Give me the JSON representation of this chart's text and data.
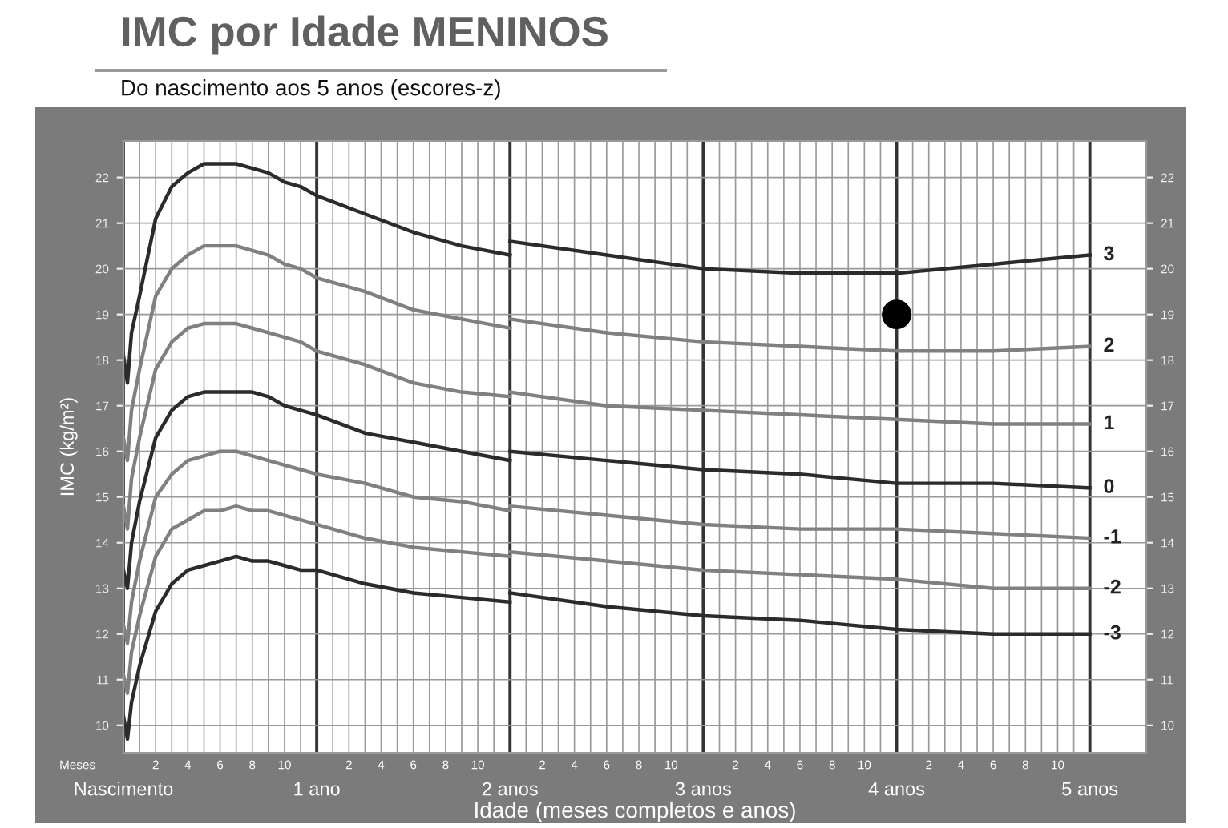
{
  "chart_data": {
    "type": "line",
    "title": "IMC por Idade MENINOS",
    "subtitle": "Do nascimento aos 5 anos (escores-z)",
    "xlabel": "Idade (meses completos e anos)",
    "ylabel": "IMC (kg/m²)",
    "annotations": [
      "Meses",
      "2",
      "4",
      "6",
      "8",
      "10",
      "2",
      "4",
      "6",
      "8",
      "10",
      "2",
      "4",
      "6",
      "8",
      "10",
      "2",
      "4",
      "6",
      "8",
      "10",
      "2",
      "4",
      "6",
      "8",
      "10"
    ],
    "series": [
      {
        "color": "#2b2b2b",
        "x": [
          0,
          0.0208,
          0.0417,
          0.0833,
          0.1667,
          0.25,
          0.3333,
          0.4167,
          0.5,
          0.5833,
          0.6667,
          0.75,
          0.8333,
          0.9167,
          1,
          1.25,
          1.5,
          1.75,
          2
        ],
        "values": [
          18.1,
          17.5,
          18.6,
          19.4,
          21.1,
          21.8,
          22.1,
          22.3,
          22.3,
          22.3,
          22.2,
          22.1,
          21.9,
          21.8,
          21.6,
          21.2,
          20.8,
          20.5,
          20.3
        ]
      },
      {
        "name": "3",
        "color": "#2b2b2b",
        "x": [
          2,
          2.5,
          3,
          3.5,
          4,
          4.5,
          5
        ],
        "values": [
          20.6,
          20.3,
          20.0,
          19.9,
          19.9,
          20.1,
          20.3
        ]
      },
      {
        "color": "#808080",
        "x": [
          0,
          0.0208,
          0.0417,
          0.0833,
          0.1667,
          0.25,
          0.3333,
          0.4167,
          0.5,
          0.5833,
          0.6667,
          0.75,
          0.8333,
          0.9167,
          1,
          1.25,
          1.5,
          1.75,
          2
        ],
        "values": [
          16.3,
          15.8,
          16.9,
          17.8,
          19.4,
          20.0,
          20.3,
          20.5,
          20.5,
          20.5,
          20.4,
          20.3,
          20.1,
          20.0,
          19.8,
          19.5,
          19.1,
          18.9,
          18.7
        ]
      },
      {
        "name": "2",
        "color": "#808080",
        "x": [
          2,
          2.5,
          3,
          3.5,
          4,
          4.5,
          5
        ],
        "values": [
          18.9,
          18.6,
          18.4,
          18.3,
          18.2,
          18.2,
          18.3
        ]
      },
      {
        "color": "#808080",
        "x": [
          0,
          0.0208,
          0.0417,
          0.0833,
          0.1667,
          0.25,
          0.3333,
          0.4167,
          0.5,
          0.5833,
          0.6667,
          0.75,
          0.8333,
          0.9167,
          1,
          1.25,
          1.5,
          1.75,
          2
        ],
        "values": [
          14.8,
          14.3,
          15.4,
          16.3,
          17.8,
          18.4,
          18.7,
          18.8,
          18.8,
          18.8,
          18.7,
          18.6,
          18.5,
          18.4,
          18.2,
          17.9,
          17.5,
          17.3,
          17.2
        ]
      },
      {
        "name": "1",
        "color": "#808080",
        "x": [
          2,
          2.5,
          3,
          3.5,
          4,
          4.5,
          5
        ],
        "values": [
          17.3,
          17.0,
          16.9,
          16.8,
          16.7,
          16.6,
          16.6
        ]
      },
      {
        "color": "#2b2b2b",
        "x": [
          0,
          0.0208,
          0.0417,
          0.0833,
          0.1667,
          0.25,
          0.3333,
          0.4167,
          0.5,
          0.5833,
          0.6667,
          0.75,
          0.8333,
          0.9167,
          1,
          1.25,
          1.5,
          1.75,
          2
        ],
        "values": [
          13.4,
          13.0,
          14.0,
          14.9,
          16.3,
          16.9,
          17.2,
          17.3,
          17.3,
          17.3,
          17.3,
          17.2,
          17.0,
          16.9,
          16.8,
          16.4,
          16.2,
          16.0,
          15.8
        ]
      },
      {
        "name": "0",
        "color": "#2b2b2b",
        "x": [
          2,
          2.5,
          3,
          3.5,
          4,
          4.5,
          5
        ],
        "values": [
          16.0,
          15.8,
          15.6,
          15.5,
          15.3,
          15.3,
          15.2
        ]
      },
      {
        "color": "#808080",
        "x": [
          0,
          0.0208,
          0.0417,
          0.0833,
          0.1667,
          0.25,
          0.3333,
          0.4167,
          0.5,
          0.5833,
          0.6667,
          0.75,
          0.8333,
          0.9167,
          1,
          1.25,
          1.5,
          1.75,
          2
        ],
        "values": [
          12.2,
          11.8,
          12.7,
          13.6,
          15.0,
          15.5,
          15.8,
          15.9,
          16.0,
          16.0,
          15.9,
          15.8,
          15.7,
          15.6,
          15.5,
          15.3,
          15.0,
          14.9,
          14.7
        ]
      },
      {
        "name": "-1",
        "color": "#808080",
        "x": [
          2,
          2.5,
          3,
          3.5,
          4,
          4.5,
          5
        ],
        "values": [
          14.8,
          14.6,
          14.4,
          14.3,
          14.3,
          14.2,
          14.1
        ]
      },
      {
        "color": "#808080",
        "x": [
          0,
          0.0208,
          0.0417,
          0.0833,
          0.1667,
          0.25,
          0.3333,
          0.4167,
          0.5,
          0.5833,
          0.6667,
          0.75,
          0.8333,
          0.9167,
          1,
          1.25,
          1.5,
          1.75,
          2
        ],
        "values": [
          11.1,
          10.7,
          11.6,
          12.4,
          13.7,
          14.3,
          14.5,
          14.7,
          14.7,
          14.8,
          14.7,
          14.7,
          14.6,
          14.5,
          14.4,
          14.1,
          13.9,
          13.8,
          13.7
        ]
      },
      {
        "name": "-2",
        "color": "#808080",
        "x": [
          2,
          2.5,
          3,
          3.5,
          4,
          4.5,
          5
        ],
        "values": [
          13.8,
          13.6,
          13.4,
          13.3,
          13.2,
          13.0,
          13.0
        ]
      },
      {
        "color": "#2b2b2b",
        "x": [
          0,
          0.0208,
          0.0417,
          0.0833,
          0.1667,
          0.25,
          0.3333,
          0.4167,
          0.5,
          0.5833,
          0.6667,
          0.75,
          0.8333,
          0.9167,
          1,
          1.25,
          1.5,
          1.75,
          2
        ],
        "values": [
          10.2,
          9.7,
          10.5,
          11.3,
          12.5,
          13.1,
          13.4,
          13.5,
          13.6,
          13.7,
          13.6,
          13.6,
          13.5,
          13.4,
          13.4,
          13.1,
          12.9,
          12.8,
          12.7
        ]
      },
      {
        "name": "-3",
        "color": "#2b2b2b",
        "x": [
          2,
          2.5,
          3,
          3.5,
          4,
          4.5,
          5
        ],
        "values": [
          12.9,
          12.6,
          12.4,
          12.3,
          12.1,
          12.0,
          12.0
        ]
      },
      {
        "type": "scatter",
        "marker": "circle",
        "x": [
          4
        ],
        "color": "#000000",
        "values": [
          19.0
        ]
      }
    ],
    "xlim": [
      0,
      5.2917
    ],
    "ylim": [
      9.4,
      22.8
    ],
    "xticks": [
      {
        "value": 0,
        "label": "Nascimento"
      },
      {
        "value": 0.0833,
        "label": null
      },
      {
        "value": 0.1667,
        "label": null
      },
      {
        "value": 0.25,
        "label": null
      },
      {
        "value": 0.3333,
        "label": null
      },
      {
        "value": 0.4167,
        "label": null
      },
      {
        "value": 0.5,
        "label": null
      },
      {
        "value": 0.5833,
        "label": null
      },
      {
        "value": 0.6667,
        "label": null
      },
      {
        "value": 0.75,
        "label": null
      },
      {
        "value": 0.8333,
        "label": null
      },
      {
        "value": 0.9167,
        "label": null
      },
      {
        "value": 1,
        "label": "1 ano"
      },
      {
        "value": 1.0833,
        "label": null
      },
      {
        "value": 1.1667,
        "label": null
      },
      {
        "value": 1.25,
        "label": null
      },
      {
        "value": 1.3333,
        "label": null
      },
      {
        "value": 1.4167,
        "label": null
      },
      {
        "value": 1.5,
        "label": null
      },
      {
        "value": 1.5833,
        "label": null
      },
      {
        "value": 1.6667,
        "label": null
      },
      {
        "value": 1.75,
        "label": null
      },
      {
        "value": 1.8333,
        "label": null
      },
      {
        "value": 1.9167,
        "label": null
      },
      {
        "value": 2,
        "label": "2 anos"
      },
      {
        "value": 2.0833,
        "label": null
      },
      {
        "value": 2.1667,
        "label": null
      },
      {
        "value": 2.25,
        "label": null
      },
      {
        "value": 2.3333,
        "label": null
      },
      {
        "value": 2.4167,
        "label": null
      },
      {
        "value": 2.5,
        "label": null
      },
      {
        "value": 2.5833,
        "label": null
      },
      {
        "value": 2.6667,
        "label": null
      },
      {
        "value": 2.75,
        "label": null
      },
      {
        "value": 2.8333,
        "label": null
      },
      {
        "value": 2.9167,
        "label": null
      },
      {
        "value": 3,
        "label": "3 anos"
      },
      {
        "value": 3.0833,
        "label": null
      },
      {
        "value": 3.1667,
        "label": null
      },
      {
        "value": 3.25,
        "label": null
      },
      {
        "value": 3.3333,
        "label": null
      },
      {
        "value": 3.4167,
        "label": null
      },
      {
        "value": 3.5,
        "label": null
      },
      {
        "value": 3.5833,
        "label": null
      },
      {
        "value": 3.6667,
        "label": null
      },
      {
        "value": 3.75,
        "label": null
      },
      {
        "value": 3.8333,
        "label": null
      },
      {
        "value": 3.9167,
        "label": null
      },
      {
        "value": 4,
        "label": "4 anos"
      },
      {
        "value": 4.0833,
        "label": null
      },
      {
        "value": 4.1667,
        "label": null
      },
      {
        "value": 4.25,
        "label": null
      },
      {
        "value": 4.3333,
        "label": null
      },
      {
        "value": 4.4167,
        "label": null
      },
      {
        "value": 4.5,
        "label": null
      },
      {
        "value": 4.5833,
        "label": null
      },
      {
        "value": 4.6667,
        "label": null
      },
      {
        "value": 4.75,
        "label": null
      },
      {
        "value": 4.8333,
        "label": null
      },
      {
        "value": 4.9167,
        "label": null
      },
      {
        "value": 5,
        "label": "5 anos"
      }
    ],
    "yticks": [
      10,
      11,
      12,
      13,
      14,
      15,
      16,
      17,
      18,
      19,
      20,
      21,
      22
    ],
    "y2lim": [
      9.4,
      22.8
    ],
    "y2ticks": [
      10,
      11,
      12,
      13,
      14,
      15,
      16,
      17,
      18,
      19,
      20,
      21,
      22
    ],
    "grid": true,
    "legend": false,
    "marker": "none",
    "line_style": "solid"
  }
}
